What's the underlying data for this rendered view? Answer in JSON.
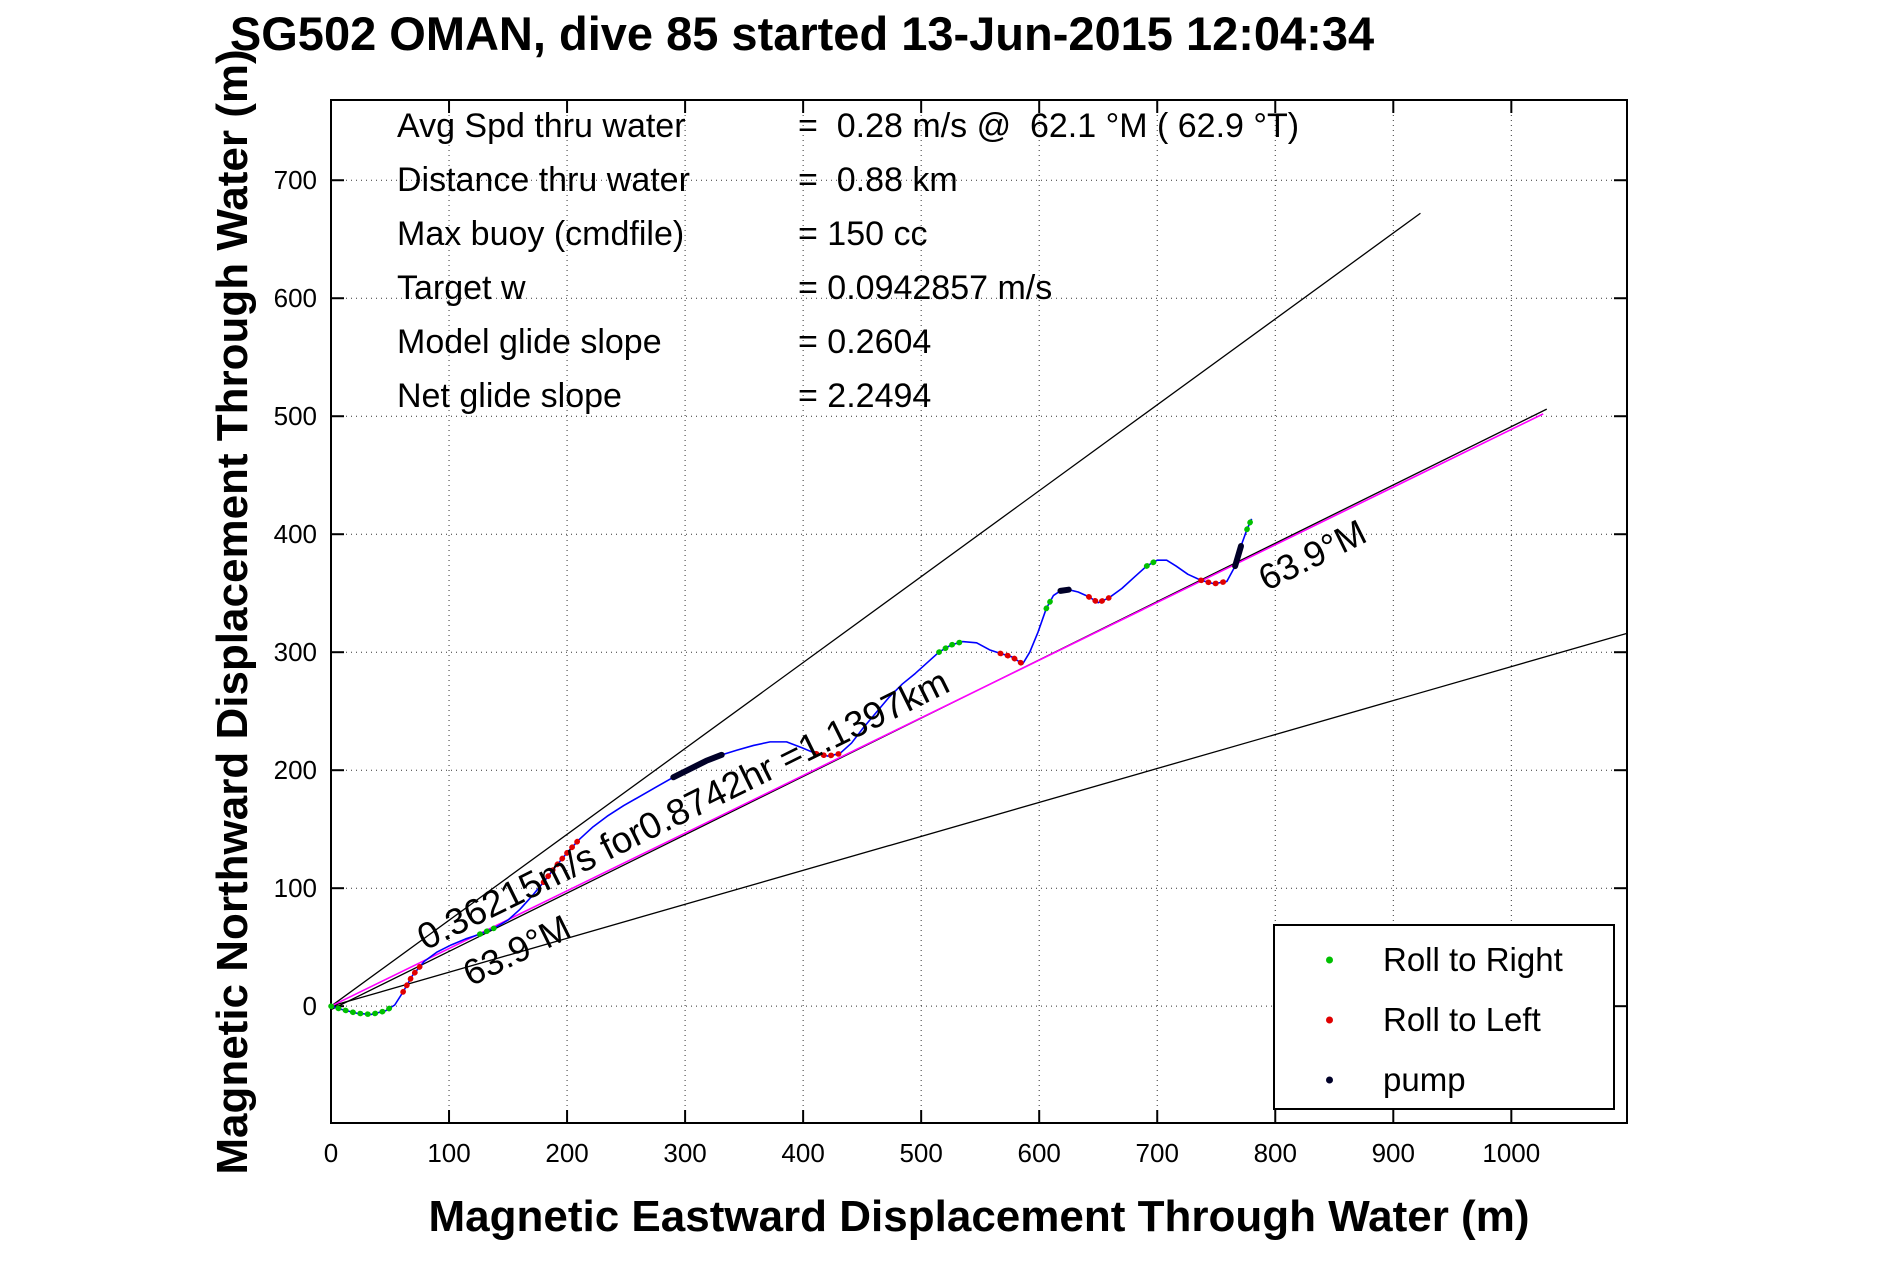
{
  "chart_data": {
    "type": "line",
    "title": "SG502 OMAN, dive 85 started 13-Jun-2015 12:04:34",
    "xlabel": "Magnetic Eastward Displacement Through Water (m)",
    "ylabel": "Magnetic Northward Displacement Through Water (m)",
    "xlim": [
      0,
      1098
    ],
    "ylim": [
      -99,
      768
    ],
    "xticks": [
      0,
      100,
      200,
      300,
      400,
      500,
      600,
      700,
      800,
      900,
      1000
    ],
    "yticks": [
      0,
      100,
      200,
      300,
      400,
      500,
      600,
      700
    ],
    "grid": "dotted",
    "legend_position": "lower right",
    "stats_annotations": [
      {
        "label": "Avg Spd thru water",
        "value": "=  0.28 m/s @  62.1 °M ( 62.9 °T)"
      },
      {
        "label": "Distance thru water",
        "value": "=  0.88 km"
      },
      {
        "label": "Max buoy (cmdfile)",
        "value": "= 150 cc"
      },
      {
        "label": "Target w",
        "value": "= 0.0942857 m/s"
      },
      {
        "label": "Model glide slope",
        "value": "= 0.2604"
      },
      {
        "label": "Net glide slope",
        "value": "= 2.2494"
      }
    ],
    "legend": [
      {
        "label": "Roll to Right",
        "marker": "dot",
        "color": "#00c000"
      },
      {
        "label": "Roll to Left",
        "marker": "dot",
        "color": "#e00000"
      },
      {
        "label": "pump",
        "marker": "dot",
        "color": "#000028"
      }
    ],
    "marker_colors": {
      "roll-right": "#00c000",
      "roll-left": "#e00000",
      "pump": "#000028"
    },
    "reference_lines": [
      {
        "name": "course-upper-bound",
        "color": "#000000",
        "width": 1.3,
        "points": [
          [
            0,
            0
          ],
          [
            923,
            672
          ]
        ]
      },
      {
        "name": "course-lower-bound",
        "color": "#000000",
        "width": 1.3,
        "points": [
          [
            0,
            0
          ],
          [
            1098,
            316
          ]
        ]
      },
      {
        "name": "displacement-vector-black",
        "color": "#000000",
        "width": 1.3,
        "points": [
          [
            0,
            -3
          ],
          [
            1030,
            506
          ]
        ]
      },
      {
        "name": "displacement-vector-magenta",
        "color": "#ff00ff",
        "width": 1.6,
        "points": [
          [
            0,
            0
          ],
          [
            1027,
            502
          ]
        ]
      }
    ],
    "rotated_annotations": [
      {
        "text": "0.36215m/s for0.8742hr =1.1397km",
        "x": 80,
        "y": 47,
        "rotate": -26.3,
        "anchor": "start",
        "font": 37
      },
      {
        "text": "63.9°M",
        "x": 162,
        "y": 38,
        "rotate": -26.3,
        "anchor": "middle",
        "font": 36
      },
      {
        "text": "63.9°M",
        "x": 836,
        "y": 373,
        "rotate": -26.3,
        "anchor": "middle",
        "font": 36
      }
    ],
    "track": {
      "name": "dive-track-through-water",
      "color": "#0000ff",
      "points": [
        [
          0,
          0
        ],
        [
          10,
          -3
        ],
        [
          22,
          -6
        ],
        [
          34,
          -7
        ],
        [
          46,
          -4
        ],
        [
          54,
          1
        ],
        [
          61,
          12
        ],
        [
          69,
          26
        ],
        [
          79,
          38
        ],
        [
          90,
          46
        ],
        [
          102,
          52
        ],
        [
          114,
          57
        ],
        [
          126,
          61
        ],
        [
          138,
          66
        ],
        [
          150,
          73
        ],
        [
          160,
          82
        ],
        [
          170,
          93
        ],
        [
          180,
          105
        ],
        [
          190,
          118
        ],
        [
          200,
          130
        ],
        [
          210,
          141
        ],
        [
          222,
          152
        ],
        [
          234,
          161
        ],
        [
          248,
          170
        ],
        [
          262,
          178
        ],
        [
          276,
          186
        ],
        [
          290,
          194
        ],
        [
          304,
          201
        ],
        [
          318,
          208
        ],
        [
          331,
          213
        ],
        [
          344,
          217
        ],
        [
          358,
          221
        ],
        [
          372,
          224
        ],
        [
          386,
          224
        ],
        [
          399,
          219
        ],
        [
          411,
          214
        ],
        [
          421,
          212
        ],
        [
          431,
          214
        ],
        [
          441,
          223
        ],
        [
          451,
          236
        ],
        [
          462,
          249
        ],
        [
          473,
          262
        ],
        [
          484,
          273
        ],
        [
          495,
          282
        ],
        [
          505,
          291
        ],
        [
          515,
          300
        ],
        [
          525,
          306
        ],
        [
          535,
          309
        ],
        [
          547,
          308
        ],
        [
          558,
          302
        ],
        [
          567,
          299
        ],
        [
          577,
          296
        ],
        [
          586,
          290
        ],
        [
          592,
          300
        ],
        [
          599,
          317
        ],
        [
          606,
          337
        ],
        [
          612,
          348
        ],
        [
          618,
          352
        ],
        [
          625,
          353
        ],
        [
          633,
          351
        ],
        [
          642,
          347
        ],
        [
          650,
          342
        ],
        [
          659,
          346
        ],
        [
          670,
          354
        ],
        [
          681,
          364
        ],
        [
          691,
          373
        ],
        [
          700,
          378
        ],
        [
          708,
          378
        ],
        [
          716,
          373
        ],
        [
          726,
          366
        ],
        [
          737,
          361
        ],
        [
          748,
          358
        ],
        [
          759,
          360
        ],
        [
          766,
          373
        ],
        [
          771,
          390
        ],
        [
          776,
          404
        ],
        [
          780,
          413
        ]
      ]
    },
    "marker_segments": [
      {
        "type": "roll-right",
        "from": 0,
        "to": 5
      },
      {
        "type": "roll-left",
        "from": 6,
        "to": 8
      },
      {
        "type": "roll-right",
        "from": 12,
        "to": 13
      },
      {
        "type": "roll-left",
        "from": 17,
        "to": 20
      },
      {
        "type": "pump",
        "from": 26,
        "to": 29
      },
      {
        "type": "roll-left",
        "from": 35,
        "to": 37
      },
      {
        "type": "roll-right",
        "from": 45,
        "to": 47
      },
      {
        "type": "roll-left",
        "from": 50,
        "to": 52
      },
      {
        "type": "roll-right",
        "from": 55,
        "to": 56
      },
      {
        "type": "pump",
        "from": 57,
        "to": 58
      },
      {
        "type": "roll-left",
        "from": 60,
        "to": 62
      },
      {
        "type": "roll-right",
        "from": 65,
        "to": 66
      },
      {
        "type": "roll-left",
        "from": 70,
        "to": 72
      },
      {
        "type": "pump",
        "from": 73,
        "to": 74
      },
      {
        "type": "roll-right",
        "from": 75,
        "to": 76
      }
    ]
  }
}
